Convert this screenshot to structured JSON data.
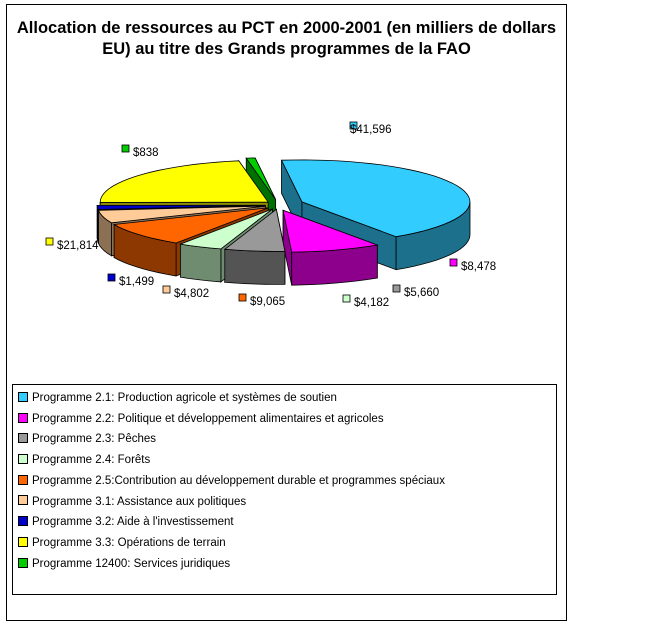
{
  "chart_data": {
    "type": "pie",
    "title_lines": [
      "Allocation de ressources au PCT en 2000-2001 (en milliers de dollars",
      "EU) au titre des Grands programmes de la FAO"
    ],
    "legend_placement": "bottom",
    "three_d": true,
    "exploded": true,
    "slices": [
      {
        "label": "Programme 2.1: Production agricole et systèmes de soutien",
        "value": 41596,
        "data_label": "$41,596",
        "color": "#33ccff"
      },
      {
        "label": "Programme 2.2: Politique et développement alimentaires et agricoles",
        "value": 8478,
        "data_label": "$8,478",
        "color": "#ff00ff"
      },
      {
        "label": "Programme 2.3: Pêches",
        "value": 5660,
        "data_label": "$5,660",
        "color": "#999999"
      },
      {
        "label": "Programme 2.4: Forêts",
        "value": 4182,
        "data_label": "$4,182",
        "color": "#ccffcc"
      },
      {
        "label": "Programme 2.5:Contribution au développement durable et programmes spéciaux",
        "value": 9065,
        "data_label": "$9,065",
        "color": "#ff6600"
      },
      {
        "label": "Programme 3.1: Assistance aux politiques",
        "value": 4802,
        "data_label": "$4,802",
        "color": "#ffcc99"
      },
      {
        "label": "Programme 3.2: Aide à l'investissement",
        "value": 1499,
        "data_label": "$1,499",
        "color": "#0000cc"
      },
      {
        "label": "Programme 3.3: Opérations de terrain",
        "value": 21814,
        "data_label": "$21,814",
        "color": "#ffff00"
      },
      {
        "label": "Programme 12400: Services juridiques",
        "value": 838,
        "data_label": "$838",
        "color": "#00cc00"
      }
    ]
  }
}
